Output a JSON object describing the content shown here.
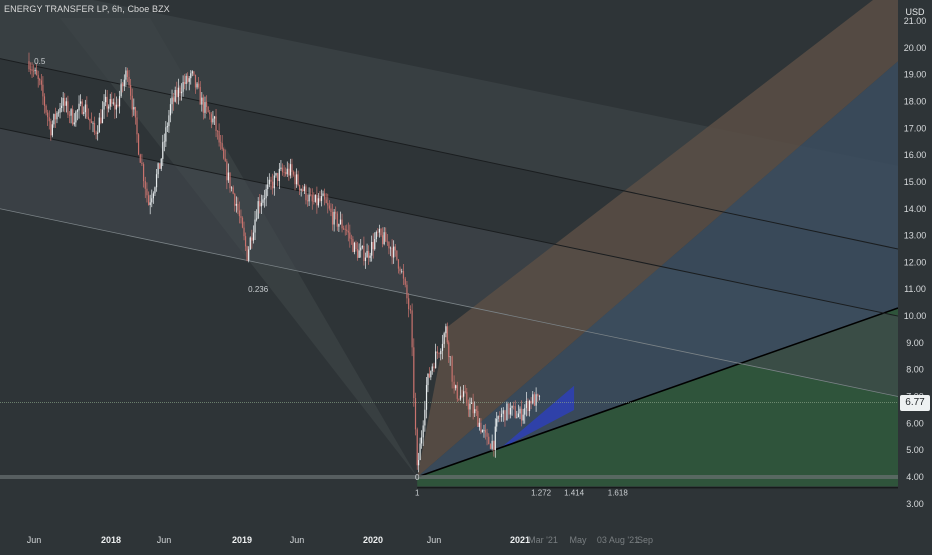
{
  "header": {
    "title": "ENERGY TRANSFER LP, 6h, Cboe BZX"
  },
  "colors": {
    "background": "#2e3437",
    "candle_up": "#e8edef",
    "candle_down": "#c9736e",
    "trendline": "#000000",
    "fan_green": "#2f5a3c",
    "fan_blue": "#3c4f62",
    "fan_brown": "#5a4f45",
    "last_price_tag": "#eef1f2"
  },
  "chart_data": {
    "type": "candlestick",
    "title": "ENERGY TRANSFER LP, 6h, Cboe BZX",
    "y_axis": {
      "unit": "USD",
      "ticks": [
        "3.00",
        "4.00",
        "5.00",
        "6.00",
        "7.00",
        "8.00",
        "9.00",
        "10.00",
        "11.00",
        "12.00",
        "13.00",
        "14.00",
        "15.00",
        "16.00",
        "17.00",
        "18.00",
        "19.00",
        "20.00",
        "21.00"
      ],
      "ylim": [
        3.0,
        21.0
      ]
    },
    "x_axis": {
      "ticks": [
        "Jun",
        "2018",
        "Jun",
        "2019",
        "Jun",
        "2020",
        "Jun",
        "2021",
        "Mar '21",
        "May",
        "03 Aug '21",
        "Sep"
      ],
      "xlim": [
        "2017-04",
        "2021-11"
      ]
    },
    "last_price": "6.77",
    "price_path": [
      [
        "2017-04-01",
        19.5
      ],
      [
        "2017-05-01",
        18.6
      ],
      [
        "2017-06-01",
        17.0
      ],
      [
        "2017-07-01",
        18.0
      ],
      [
        "2017-08-01",
        17.4
      ],
      [
        "2017-09-01",
        17.9
      ],
      [
        "2017-10-01",
        16.8
      ],
      [
        "2017-11-01",
        17.9
      ],
      [
        "2017-12-01",
        17.8
      ],
      [
        "2018-01-01",
        19.2
      ],
      [
        "2018-02-01",
        16.3
      ],
      [
        "2018-03-01",
        14.2
      ],
      [
        "2018-04-01",
        15.6
      ],
      [
        "2018-05-01",
        17.8
      ],
      [
        "2018-06-01",
        18.6
      ],
      [
        "2018-07-01",
        18.9
      ],
      [
        "2018-08-01",
        17.8
      ],
      [
        "2018-09-01",
        17.2
      ],
      [
        "2018-10-01",
        15.5
      ],
      [
        "2018-11-01",
        14.2
      ],
      [
        "2018-12-01",
        12.3
      ],
      [
        "2019-01-01",
        14.2
      ],
      [
        "2019-02-01",
        14.8
      ],
      [
        "2019-03-01",
        15.3
      ],
      [
        "2019-04-01",
        15.4
      ],
      [
        "2019-05-01",
        14.8
      ],
      [
        "2019-06-01",
        14.2
      ],
      [
        "2019-07-01",
        14.3
      ],
      [
        "2019-08-01",
        13.6
      ],
      [
        "2019-09-01",
        13.3
      ],
      [
        "2019-10-01",
        12.4
      ],
      [
        "2019-11-01",
        12.3
      ],
      [
        "2019-12-01",
        13.0
      ],
      [
        "2020-01-01",
        12.7
      ],
      [
        "2020-02-01",
        11.9
      ],
      [
        "2020-03-01",
        10.0
      ],
      [
        "2020-03-20",
        4.2
      ],
      [
        "2020-04-01",
        5.6
      ],
      [
        "2020-04-15",
        7.4
      ],
      [
        "2020-05-01",
        8.2
      ],
      [
        "2020-05-20",
        8.8
      ],
      [
        "2020-06-08",
        9.5
      ],
      [
        "2020-06-20",
        8.4
      ],
      [
        "2020-07-01",
        7.2
      ],
      [
        "2020-08-01",
        6.9
      ],
      [
        "2020-09-01",
        6.3
      ],
      [
        "2020-10-01",
        5.3
      ],
      [
        "2020-10-20",
        5.3
      ],
      [
        "2020-11-01",
        6.2
      ],
      [
        "2020-11-20",
        6.4
      ],
      [
        "2020-12-01",
        6.5
      ],
      [
        "2021-01-01",
        6.3
      ],
      [
        "2021-02-01",
        6.9
      ],
      [
        "2021-03-01",
        6.77
      ]
    ],
    "fib_labels": [
      {
        "label": "0.5",
        "date": "2017-05-01",
        "price": 19.5
      },
      {
        "label": "0.236",
        "date": "2019-01-01",
        "price": 11.0
      },
      {
        "label": "0",
        "date": "2020-03-20",
        "price": 4.0
      },
      {
        "label": "1",
        "date": "2020-03-20",
        "price": 3.6
      },
      {
        "label": "1.272",
        "date": "2021-03-01",
        "price": 3.6
      },
      {
        "label": "1.414",
        "date": "2021-06-01",
        "price": 3.6
      },
      {
        "label": "1.618",
        "date": "2021-10-01",
        "price": 3.6
      }
    ],
    "grid": false,
    "legend": "none"
  }
}
